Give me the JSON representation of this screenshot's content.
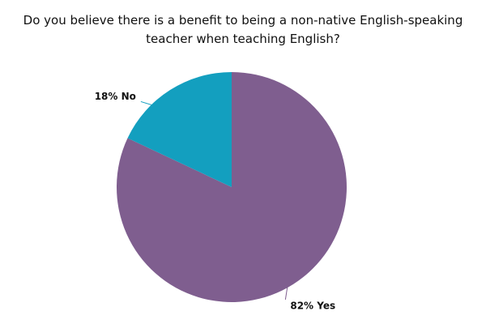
{
  "chart_data": {
    "type": "pie",
    "title": "Do you believe there is a benefit to being a non-native English-speaking teacher when teaching English?",
    "values": [
      82,
      18
    ],
    "value_labels": [
      "82% Yes",
      "18% No"
    ],
    "colors": [
      "#7f5e8f",
      "#139fbf"
    ]
  }
}
